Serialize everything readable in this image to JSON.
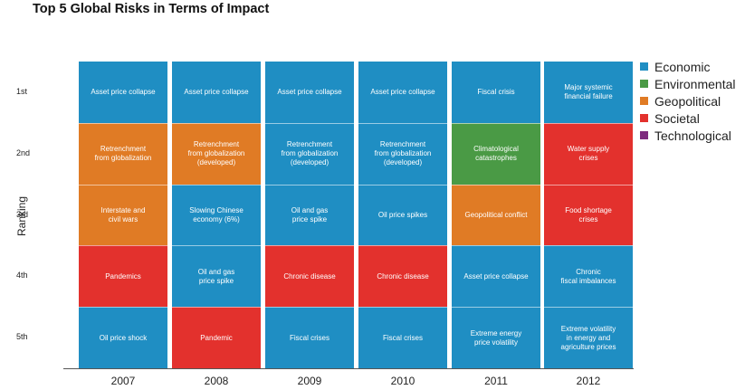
{
  "chart_data": {
    "type": "table",
    "title": "Top 5 Global Risks in Terms of Impact",
    "ylabel": "Ranking",
    "rankings": [
      "1st",
      "2nd",
      "3rd",
      "4th",
      "5th"
    ],
    "years": [
      "2007",
      "2008",
      "2009",
      "2010",
      "2011",
      "2012"
    ],
    "categories": [
      {
        "name": "Economic",
        "color": "#1f8ec3"
      },
      {
        "name": "Environmental",
        "color": "#4a9a45"
      },
      {
        "name": "Geopolitical",
        "color": "#e07b25"
      },
      {
        "name": "Societal",
        "color": "#e3312d"
      },
      {
        "name": "Technological",
        "color": "#7e2a7e"
      }
    ],
    "grid": [
      [
        {
          "label": "Asset price collapse",
          "category": "Economic"
        },
        {
          "label": "Retrenchment\nfrom globalization",
          "category": "Geopolitical"
        },
        {
          "label": "Interstate and\ncivil wars",
          "category": "Geopolitical"
        },
        {
          "label": "Pandemics",
          "category": "Societal"
        },
        {
          "label": "Oil price shock",
          "category": "Economic"
        }
      ],
      [
        {
          "label": "Asset price collapse",
          "category": "Economic"
        },
        {
          "label": "Retrenchment\nfrom globalization\n(developed)",
          "category": "Geopolitical"
        },
        {
          "label": "Slowing Chinese\neconomy (6%)",
          "category": "Economic"
        },
        {
          "label": "Oil and gas\nprice spike",
          "category": "Economic"
        },
        {
          "label": "Pandemic",
          "category": "Societal"
        }
      ],
      [
        {
          "label": "Asset price collapse",
          "category": "Economic"
        },
        {
          "label": "Retrenchment\nfrom globalization\n(developed)",
          "category": "Economic"
        },
        {
          "label": "Oil and gas\nprice spike",
          "category": "Economic"
        },
        {
          "label": "Chronic disease",
          "category": "Societal"
        },
        {
          "label": "Fiscal crises",
          "category": "Economic"
        }
      ],
      [
        {
          "label": "Asset price collapse",
          "category": "Economic"
        },
        {
          "label": "Retrenchment\nfrom globalization\n(developed)",
          "category": "Economic"
        },
        {
          "label": "Oil price spikes",
          "category": "Economic"
        },
        {
          "label": "Chronic disease",
          "category": "Societal"
        },
        {
          "label": "Fiscal crises",
          "category": "Economic"
        }
      ],
      [
        {
          "label": "Fiscal crisis",
          "category": "Economic"
        },
        {
          "label": "Climatological\ncatastrophes",
          "category": "Environmental"
        },
        {
          "label": "Geopolitical conflict",
          "category": "Geopolitical"
        },
        {
          "label": "Asset price collapse",
          "category": "Economic"
        },
        {
          "label": "Extreme energy\nprice volatility",
          "category": "Economic"
        }
      ],
      [
        {
          "label": "Major systemic\nfinancial failure",
          "category": "Economic"
        },
        {
          "label": "Water supply\ncrises",
          "category": "Societal"
        },
        {
          "label": "Food shortage\ncrises",
          "category": "Societal"
        },
        {
          "label": "Chronic\nfiscal imbalances",
          "category": "Economic"
        },
        {
          "label": "Extreme volatility\nin energy and\nagriculture prices",
          "category": "Economic"
        }
      ]
    ]
  }
}
